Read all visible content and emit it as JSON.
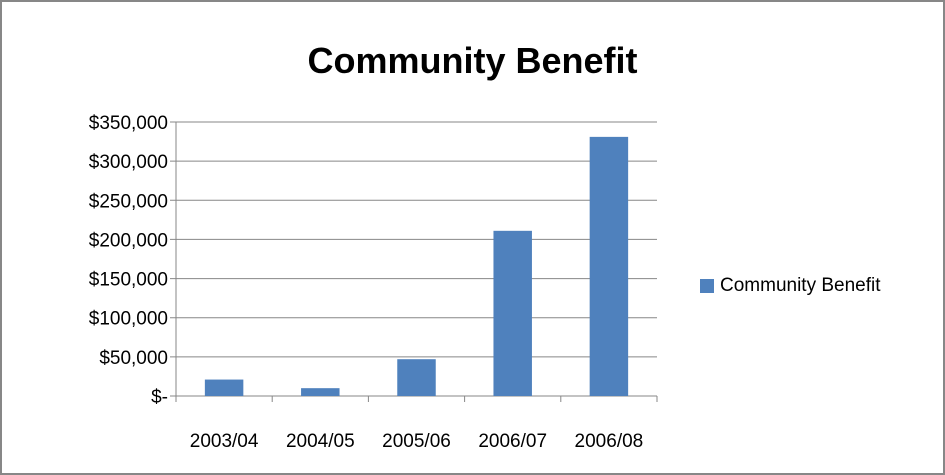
{
  "chart_data": {
    "type": "bar",
    "title": "Community Benefit",
    "categories": [
      "2003/04",
      "2004/05",
      "2005/06",
      "2006/07",
      "2006/08"
    ],
    "series": [
      {
        "name": "Community Benefit",
        "values": [
          21000,
          10000,
          47000,
          211000,
          331000
        ],
        "color": "#4f81bd"
      }
    ],
    "ylim": [
      0,
      350000
    ],
    "yticks": [
      0,
      50000,
      100000,
      150000,
      200000,
      250000,
      300000,
      350000
    ],
    "ytick_labels": [
      "$-",
      "$50,000",
      "$100,000",
      "$150,000",
      "$200,000",
      "$250,000",
      "$300,000",
      "$350,000"
    ],
    "grid": true,
    "legend_position": "right"
  }
}
